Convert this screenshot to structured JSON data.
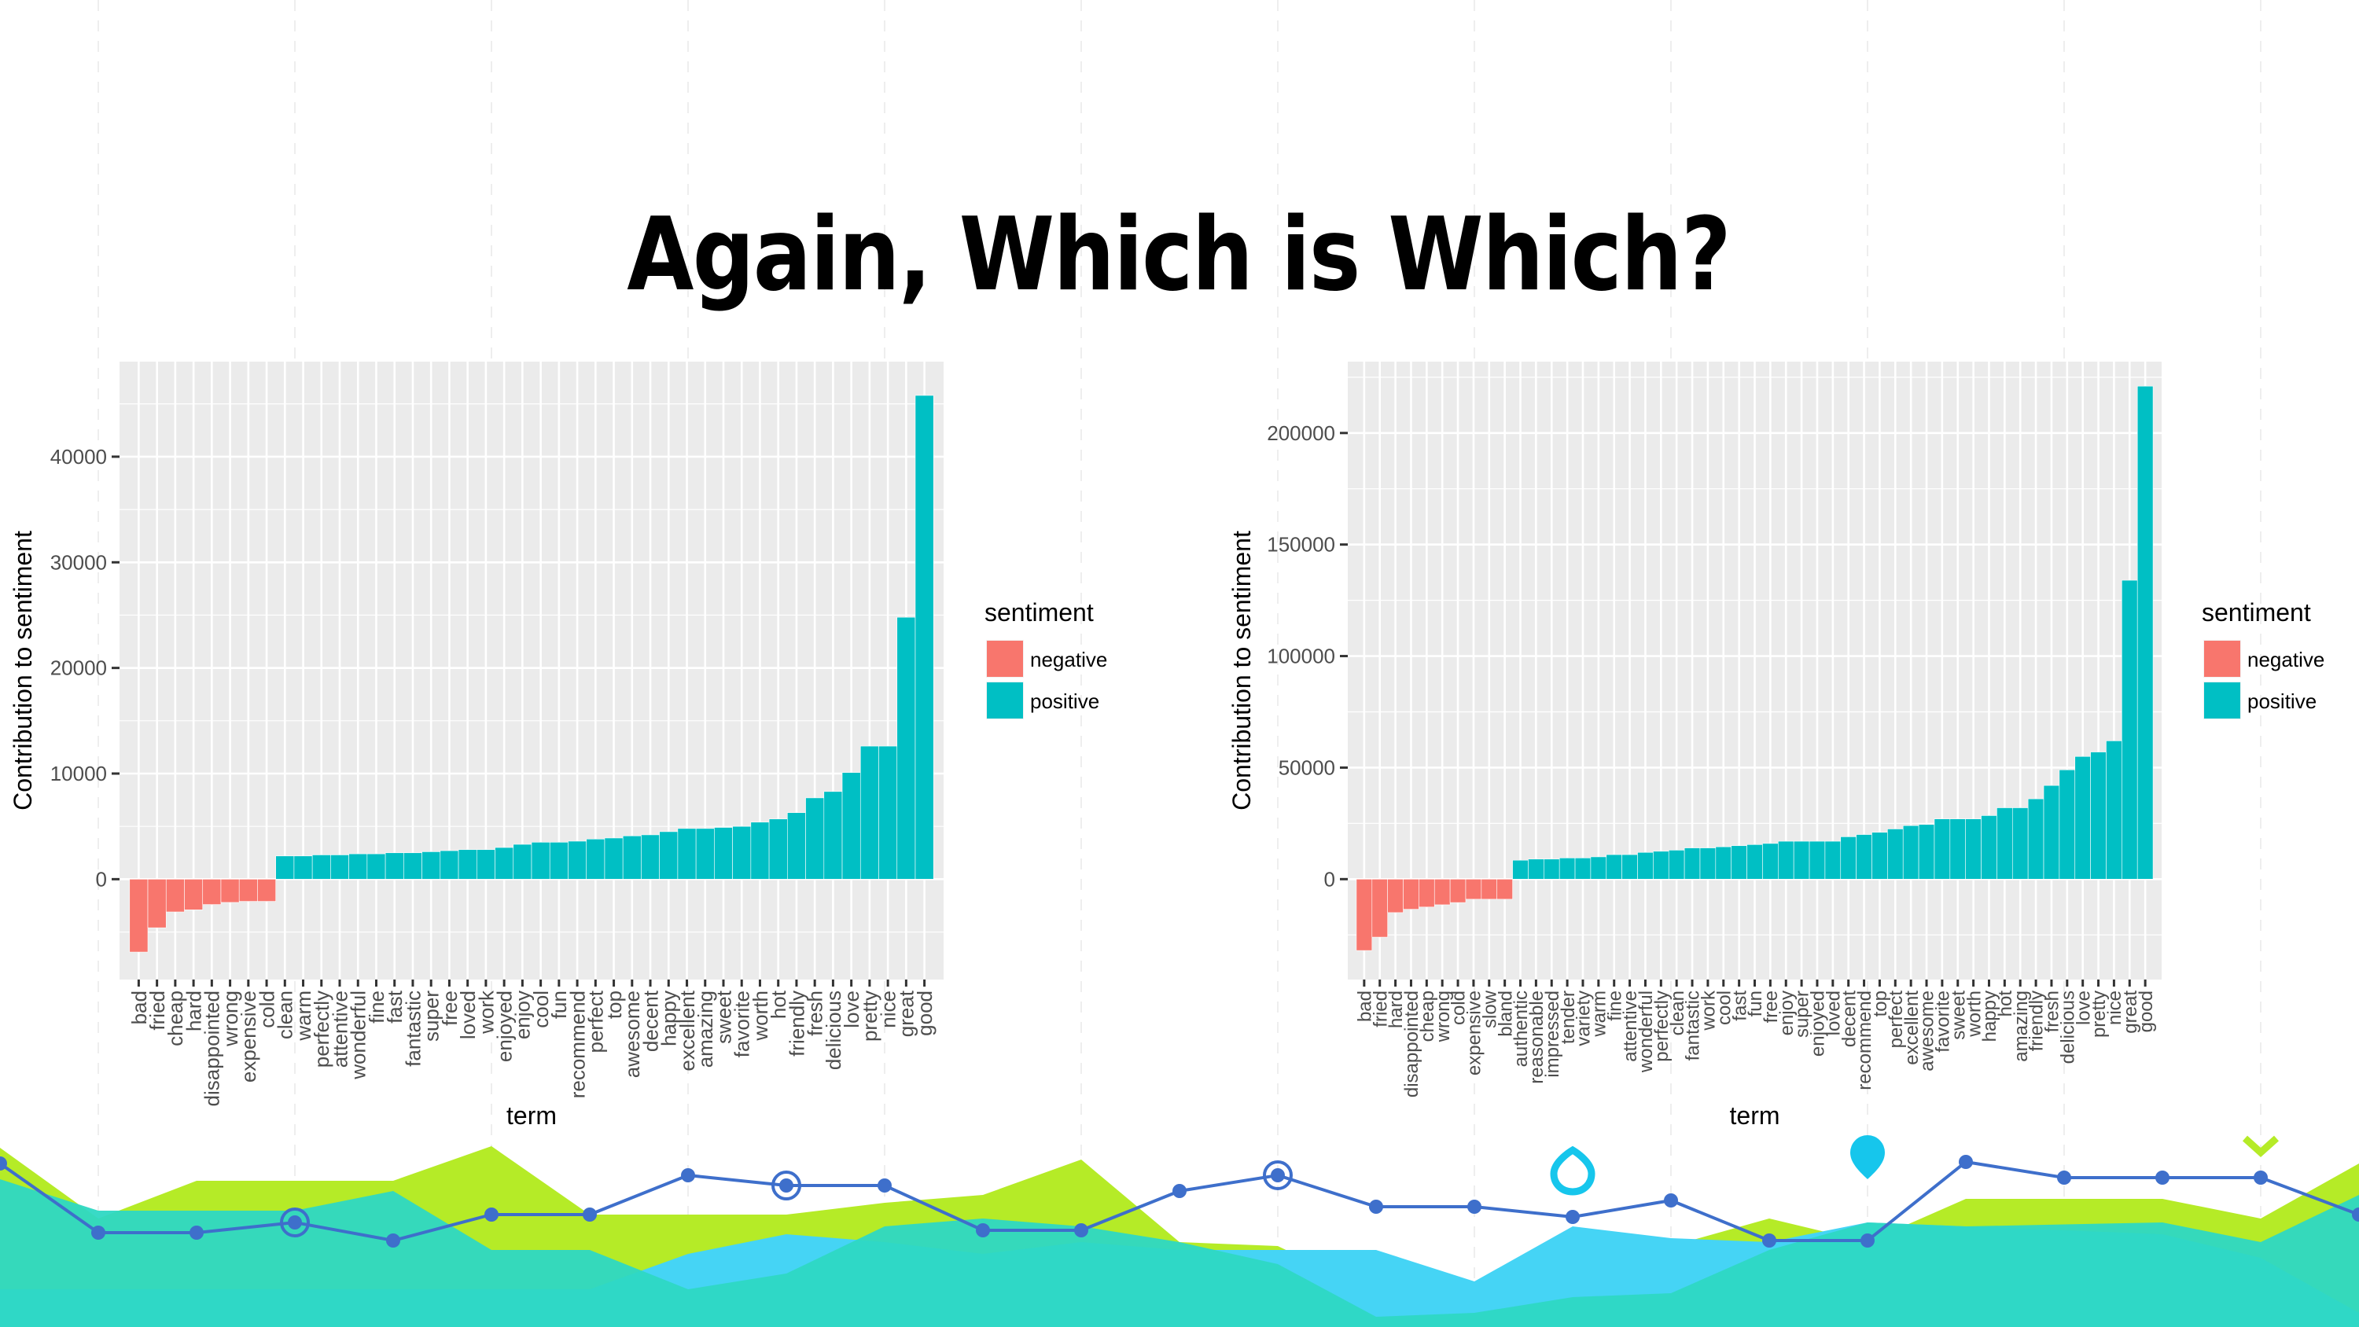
{
  "slide": {
    "title": "Again, Which is Which?"
  },
  "colors": {
    "negative": "#F8766D",
    "positive": "#00BFC4",
    "panel_bg": "#EBEBEB",
    "grid": "#FFFFFF",
    "deco_green": "#B5EB27",
    "deco_cyan": "#45D4F5",
    "deco_teal": "#2ED8C3",
    "deco_line": "#3E6FCB"
  },
  "chart_data": [
    {
      "type": "bar",
      "xlabel": "term",
      "ylabel": "Contribution to sentiment",
      "ylim": [
        -9500,
        49000
      ],
      "yticks": [
        0,
        10000,
        20000,
        30000,
        40000
      ],
      "ytick_labels": [
        "0",
        "10000",
        "20000",
        "30000",
        "40000"
      ],
      "legend": {
        "title": "sentiment",
        "position": "right",
        "entries": [
          "negative",
          "positive"
        ]
      },
      "categories": [
        "bad",
        "fried",
        "cheap",
        "hard",
        "disappointed",
        "wrong",
        "expensive",
        "cold",
        "clean",
        "warm",
        "perfectly",
        "attentive",
        "wonderful",
        "fine",
        "fast",
        "fantastic",
        "super",
        "free",
        "loved",
        "work",
        "enjoyed",
        "enjoy",
        "cool",
        "fun",
        "recommend",
        "perfect",
        "top",
        "awesome",
        "decent",
        "happy",
        "excellent",
        "amazing",
        "sweet",
        "favorite",
        "worth",
        "hot",
        "friendly",
        "fresh",
        "delicious",
        "love",
        "pretty",
        "nice",
        "great",
        "good"
      ],
      "values": [
        -6900,
        -4600,
        -3100,
        -2900,
        -2400,
        -2200,
        -2100,
        -2100,
        2200,
        2200,
        2300,
        2300,
        2400,
        2400,
        2500,
        2500,
        2600,
        2700,
        2800,
        2800,
        3000,
        3300,
        3500,
        3500,
        3600,
        3800,
        3900,
        4100,
        4200,
        4500,
        4800,
        4800,
        4900,
        5000,
        5400,
        5700,
        6300,
        7700,
        8300,
        10100,
        12600,
        12600,
        24800,
        45800
      ],
      "sentiment": [
        "negative",
        "negative",
        "negative",
        "negative",
        "negative",
        "negative",
        "negative",
        "negative",
        "positive",
        "positive",
        "positive",
        "positive",
        "positive",
        "positive",
        "positive",
        "positive",
        "positive",
        "positive",
        "positive",
        "positive",
        "positive",
        "positive",
        "positive",
        "positive",
        "positive",
        "positive",
        "positive",
        "positive",
        "positive",
        "positive",
        "positive",
        "positive",
        "positive",
        "positive",
        "positive",
        "positive",
        "positive",
        "positive",
        "positive",
        "positive",
        "positive",
        "positive",
        "positive",
        "positive"
      ]
    },
    {
      "type": "bar",
      "xlabel": "term",
      "ylabel": "Contribution to sentiment",
      "ylim": [
        -45000,
        232000
      ],
      "yticks": [
        0,
        50000,
        100000,
        150000,
        200000
      ],
      "ytick_labels": [
        "0",
        "50000",
        "100000",
        "150000",
        "200000"
      ],
      "legend": {
        "title": "sentiment",
        "position": "right",
        "entries": [
          "negative",
          "positive"
        ]
      },
      "categories": [
        "bad",
        "fried",
        "hard",
        "disappointed",
        "cheap",
        "wrong",
        "cold",
        "expensive",
        "slow",
        "bland",
        "authentic",
        "reasonable",
        "impressed",
        "tender",
        "variety",
        "warm",
        "fine",
        "attentive",
        "wonderful",
        "perfectly",
        "clean",
        "fantastic",
        "work",
        "cool",
        "fast",
        "fun",
        "free",
        "enjoy",
        "super",
        "enjoyed",
        "loved",
        "decent",
        "recommend",
        "top",
        "perfect",
        "excellent",
        "awesome",
        "favorite",
        "sweet",
        "worth",
        "happy",
        "hot",
        "amazing",
        "friendly",
        "fresh",
        "delicious",
        "love",
        "pretty",
        "nice",
        "great",
        "good"
      ],
      "values": [
        -32000,
        -26000,
        -15000,
        -13500,
        -12500,
        -11500,
        -10500,
        -9000,
        -9000,
        -9000,
        8500,
        9000,
        9000,
        9500,
        9500,
        10000,
        11000,
        11000,
        12000,
        12500,
        13000,
        14000,
        14000,
        14500,
        15000,
        15500,
        16000,
        17000,
        17000,
        17000,
        17000,
        19000,
        20000,
        21000,
        22500,
        24000,
        24500,
        27000,
        27000,
        27000,
        28500,
        32000,
        32000,
        36000,
        42000,
        49000,
        55000,
        57000,
        62000,
        134000,
        221000
      ],
      "sentiment": [
        "negative",
        "negative",
        "negative",
        "negative",
        "negative",
        "negative",
        "negative",
        "negative",
        "negative",
        "negative",
        "positive",
        "positive",
        "positive",
        "positive",
        "positive",
        "positive",
        "positive",
        "positive",
        "positive",
        "positive",
        "positive",
        "positive",
        "positive",
        "positive",
        "positive",
        "positive",
        "positive",
        "positive",
        "positive",
        "positive",
        "positive",
        "positive",
        "positive",
        "positive",
        "positive",
        "positive",
        "positive",
        "positive",
        "positive",
        "positive",
        "positive",
        "positive",
        "positive",
        "positive",
        "positive",
        "positive",
        "positive",
        "positive",
        "positive",
        "positive",
        "positive"
      ]
    }
  ]
}
